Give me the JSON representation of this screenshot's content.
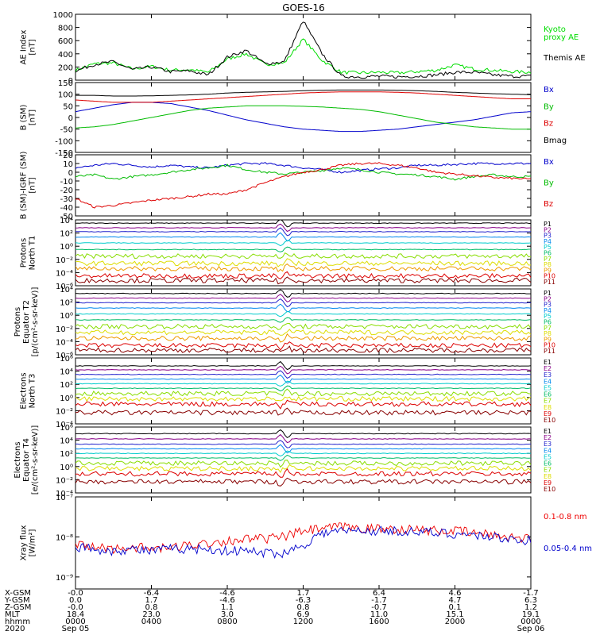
{
  "title": "GOES-16",
  "panels": [
    {
      "id": "ae",
      "ylabel": [
        "AE Index",
        "[nT]"
      ],
      "ticks": [
        "1000",
        "800",
        "600",
        "400",
        "200",
        "0"
      ],
      "tick_values": [
        1000,
        800,
        600,
        400,
        200,
        0
      ],
      "ylim": [
        0,
        1000
      ],
      "log": false,
      "legend": [
        {
          "text": "Kyoto",
          "color": "#00dd00"
        },
        {
          "text": "proxy AE",
          "color": "#00dd00"
        },
        {
          "text": "Themis AE",
          "color": "#000000"
        }
      ]
    },
    {
      "id": "bsm",
      "ylabel": [
        "B (SM)",
        "[nT]"
      ],
      "ticks": [
        "150",
        "100",
        "50",
        "0",
        "-50",
        "-100",
        "-150"
      ],
      "tick_values": [
        150,
        100,
        50,
        0,
        -50,
        -100,
        -150
      ],
      "ylim": [
        -150,
        150
      ],
      "log": false,
      "legend": [
        {
          "text": "Bx",
          "color": "#0000cc"
        },
        {
          "text": "By",
          "color": "#00bb00"
        },
        {
          "text": "Bz",
          "color": "#dd0000"
        },
        {
          "text": "Bmag",
          "color": "#000000"
        }
      ]
    },
    {
      "id": "bigrf",
      "ylabel": [
        "B (SM)-IGRF (SM)",
        "[nT]"
      ],
      "ticks": [
        "20",
        "10",
        "0",
        "-10",
        "-20",
        "-30",
        "-40",
        "-50"
      ],
      "tick_values": [
        20,
        10,
        0,
        -10,
        -20,
        -30,
        -40,
        -50
      ],
      "ylim": [
        -50,
        20
      ],
      "log": false,
      "legend": [
        {
          "text": "Bx",
          "color": "#0000cc"
        },
        {
          "text": "By",
          "color": "#00bb00"
        },
        {
          "text": "Bz",
          "color": "#dd0000"
        }
      ]
    },
    {
      "id": "pt1",
      "ylabel": [
        "Protons",
        "North T1"
      ],
      "ticks": [
        "10⁴",
        "10²",
        "10⁰",
        "10⁻²",
        "10⁻⁴",
        "10⁻⁶"
      ],
      "tick_values": [
        4,
        2,
        0,
        -2,
        -4,
        -6
      ],
      "ylim": [
        -6,
        4
      ],
      "log": true,
      "legend": [
        {
          "text": "P1",
          "color": "#000000"
        },
        {
          "text": "P2",
          "color": "#880088"
        },
        {
          "text": "P3",
          "color": "#2222cc"
        },
        {
          "text": "P4",
          "color": "#0088ee"
        },
        {
          "text": "P5",
          "color": "#00cccc"
        },
        {
          "text": "P6",
          "color": "#00bb66"
        },
        {
          "text": "P7",
          "color": "#88dd00"
        },
        {
          "text": "P8",
          "color": "#dddd00"
        },
        {
          "text": "P9",
          "color": "#ee9900"
        },
        {
          "text": "P10",
          "color": "#dd0000"
        },
        {
          "text": "P11",
          "color": "#880000"
        }
      ]
    },
    {
      "id": "pt2",
      "ylabel": [
        "Protons",
        "Equator T2",
        "[p/(cm²-s-sr-keV)]"
      ],
      "ticks": [
        "10⁴",
        "10²",
        "10⁰",
        "10⁻²",
        "10⁻⁴",
        "10⁻⁶"
      ],
      "tick_values": [
        4,
        2,
        0,
        -2,
        -4,
        -6
      ],
      "ylim": [
        -6,
        4
      ],
      "log": true,
      "legend": [
        {
          "text": "P1",
          "color": "#000000"
        },
        {
          "text": "P2",
          "color": "#880088"
        },
        {
          "text": "P3",
          "color": "#2222cc"
        },
        {
          "text": "P4",
          "color": "#0088ee"
        },
        {
          "text": "P5",
          "color": "#00cccc"
        },
        {
          "text": "P6",
          "color": "#00bb66"
        },
        {
          "text": "P7",
          "color": "#88dd00"
        },
        {
          "text": "P8",
          "color": "#dddd00"
        },
        {
          "text": "P9",
          "color": "#ee9900"
        },
        {
          "text": "P10",
          "color": "#dd0000"
        },
        {
          "text": "P11",
          "color": "#880000"
        }
      ]
    },
    {
      "id": "et3",
      "ylabel": [
        "Electrons",
        "North T3"
      ],
      "ticks": [
        "10⁶",
        "10⁴",
        "10²",
        "10⁰",
        "10⁻²",
        "10⁻⁴"
      ],
      "tick_values": [
        6,
        4,
        2,
        0,
        -2,
        -4
      ],
      "ylim": [
        -4,
        6
      ],
      "log": true,
      "legend": [
        {
          "text": "E1",
          "color": "#000000"
        },
        {
          "text": "E2",
          "color": "#880088"
        },
        {
          "text": "E3",
          "color": "#2222cc"
        },
        {
          "text": "E4",
          "color": "#0088ee"
        },
        {
          "text": "E5",
          "color": "#00cccc"
        },
        {
          "text": "E6",
          "color": "#00bb66"
        },
        {
          "text": "E7",
          "color": "#88dd00"
        },
        {
          "text": "E8",
          "color": "#dddd00"
        },
        {
          "text": "E9",
          "color": "#dd0000"
        },
        {
          "text": "E10",
          "color": "#880000"
        }
      ]
    },
    {
      "id": "et4",
      "ylabel": [
        "Electrons",
        "Equator T4",
        "[e/(cm²-s-sr-keV)]"
      ],
      "ticks": [
        "10⁶",
        "10⁴",
        "10²",
        "10⁰",
        "10⁻²",
        "10⁻⁴"
      ],
      "tick_values": [
        6,
        4,
        2,
        0,
        -2,
        -4
      ],
      "ylim": [
        -4,
        6
      ],
      "log": true,
      "legend": [
        {
          "text": "E1",
          "color": "#000000"
        },
        {
          "text": "E2",
          "color": "#880088"
        },
        {
          "text": "E3",
          "color": "#2222cc"
        },
        {
          "text": "E4",
          "color": "#0088ee"
        },
        {
          "text": "E5",
          "color": "#00cccc"
        },
        {
          "text": "E6",
          "color": "#00bb66"
        },
        {
          "text": "E7",
          "color": "#88dd00"
        },
        {
          "text": "E8",
          "color": "#dddd00"
        },
        {
          "text": "E9",
          "color": "#dd0000"
        },
        {
          "text": "E10",
          "color": "#880000"
        }
      ]
    },
    {
      "id": "xray",
      "ylabel": [
        "Xray flux",
        "[W/m²]"
      ],
      "ticks": [
        "10⁻⁷",
        "10⁻⁸",
        "10⁻⁹"
      ],
      "tick_values": [
        -7,
        -8,
        -9
      ],
      "ylim": [
        -9.3,
        -7
      ],
      "log": true,
      "legend": [
        {
          "text": "0.1-0.8 nm",
          "color": "#ee0000"
        },
        {
          "text": "0.05-0.4 nm",
          "color": "#0000cc"
        }
      ]
    }
  ],
  "footer": {
    "row_labels": [
      "X-GSM",
      "Y-GSM",
      "Z-GSM",
      "MLT",
      "hhmm",
      "2020"
    ],
    "columns": [
      {
        "values": [
          "-0.0",
          "0.0",
          "-0.0",
          "18.4",
          "0000",
          "Sep 05"
        ]
      },
      {
        "values": [
          "-6.4",
          "1.7",
          "0.8",
          "23.0",
          "0400",
          ""
        ]
      },
      {
        "values": [
          "-4.6",
          "-4.6",
          "1.1",
          "3.0",
          "0800",
          ""
        ]
      },
      {
        "values": [
          "1.7",
          "-6.3",
          "0.8",
          "6.9",
          "1200",
          ""
        ]
      },
      {
        "values": [
          "6.4",
          "-1.7",
          "-0.7",
          "11.0",
          "1600",
          ""
        ]
      },
      {
        "values": [
          "4.6",
          "4.7",
          "0.1",
          "15.1",
          "2000",
          ""
        ]
      },
      {
        "values": [
          "-1.7",
          "6.3",
          "1.2",
          "19.1",
          "0000",
          "Sep 06"
        ]
      }
    ]
  },
  "chart_data": {
    "type": "line",
    "title": "GOES-16",
    "x_hours": [
      0,
      1,
      2,
      3,
      4,
      5,
      6,
      7,
      8,
      9,
      10,
      11,
      12,
      13,
      14,
      15,
      16,
      17,
      18,
      19,
      20,
      21,
      22,
      23,
      24
    ],
    "x_ticks": [
      "0000",
      "0400",
      "0800",
      "1200",
      "1600",
      "2000",
      "0000"
    ],
    "panels": [
      {
        "id": "ae",
        "series": [
          {
            "name": "Kyoto proxy AE",
            "values": [
              150,
              250,
              260,
              170,
              210,
              150,
              160,
              120,
              320,
              400,
              240,
              260,
              620,
              300,
              120,
              110,
              120,
              110,
              130,
              150,
              230,
              170,
              150,
              130,
              120
            ]
          },
          {
            "name": "Themis AE",
            "values": [
              140,
              240,
              280,
              160,
              200,
              130,
              140,
              80,
              350,
              450,
              250,
              280,
              900,
              400,
              60,
              50,
              60,
              50,
              60,
              80,
              120,
              120,
              80,
              60,
              60
            ]
          }
        ]
      },
      {
        "id": "bsm",
        "series": [
          {
            "name": "Bx",
            "values": [
              25,
              40,
              55,
              65,
              65,
              60,
              45,
              30,
              10,
              -10,
              -25,
              -40,
              -50,
              -55,
              -60,
              -60,
              -55,
              -50,
              -40,
              -30,
              -20,
              -10,
              5,
              20,
              25
            ]
          },
          {
            "name": "By",
            "values": [
              -45,
              -40,
              -30,
              -15,
              0,
              15,
              30,
              40,
              45,
              50,
              50,
              50,
              48,
              45,
              40,
              35,
              25,
              10,
              -5,
              -20,
              -30,
              -40,
              -45,
              -50,
              -50
            ]
          },
          {
            "name": "Bz",
            "values": [
              75,
              70,
              65,
              65,
              65,
              70,
              75,
              80,
              85,
              90,
              95,
              100,
              105,
              108,
              110,
              110,
              110,
              108,
              105,
              100,
              95,
              90,
              85,
              80,
              80
            ]
          },
          {
            "name": "Bmag",
            "values": [
              95,
              95,
              92,
              92,
              93,
              95,
              97,
              100,
              105,
              108,
              110,
              112,
              115,
              117,
              118,
              118,
              118,
              117,
              115,
              112,
              108,
              105,
              102,
              100,
              98
            ]
          }
        ]
      },
      {
        "id": "bigrf",
        "series": [
          {
            "name": "Bx",
            "values": [
              5,
              8,
              10,
              8,
              6,
              8,
              6,
              5,
              8,
              10,
              10,
              8,
              5,
              3,
              0,
              2,
              4,
              5,
              8,
              8,
              9,
              10,
              10,
              10,
              10
            ]
          },
          {
            "name": "By",
            "values": [
              -5,
              -3,
              -8,
              -5,
              -3,
              0,
              3,
              5,
              8,
              3,
              0,
              -2,
              0,
              2,
              5,
              3,
              0,
              -2,
              -3,
              -5,
              -8,
              -5,
              -3,
              -5,
              -5
            ]
          },
          {
            "name": "Bz",
            "values": [
              -30,
              -40,
              -38,
              -35,
              -32,
              -30,
              -28,
              -25,
              -25,
              -20,
              -12,
              -5,
              0,
              3,
              8,
              10,
              10,
              8,
              5,
              0,
              -2,
              -4,
              -6,
              -7,
              -8
            ]
          }
        ]
      },
      {
        "id": "pt1",
        "series_levels": [
          3.5,
          2.8,
          2.2,
          1.4,
          0.5,
          -0.5,
          -1.5,
          -2.6,
          -3.4,
          -4.5,
          -5.2
        ]
      },
      {
        "id": "pt2",
        "series_levels": [
          3.3,
          2.6,
          1.9,
          1.1,
          0.2,
          -0.7,
          -1.7,
          -2.6,
          -3.5,
          -4.6,
          -5.3
        ]
      },
      {
        "id": "et3",
        "series_levels": [
          4.8,
          4.2,
          3.5,
          2.8,
          2.1,
          1.4,
          0.6,
          -0.2,
          -1.0,
          -2.3
        ]
      },
      {
        "id": "et4",
        "series_levels": [
          5.0,
          4.2,
          3.4,
          2.7,
          2.0,
          1.3,
          0.5,
          -0.3,
          -1.1,
          -2.3
        ]
      },
      {
        "id": "xray",
        "series": [
          {
            "name": "0.1-0.8 nm",
            "values": [
              -8.2,
              -8.25,
              -8.3,
              -8.25,
              -8.3,
              -8.28,
              -8.2,
              -8.15,
              -8.1,
              -8.05,
              -8.05,
              -8.0,
              -7.85,
              -7.8,
              -7.75,
              -7.78,
              -7.8,
              -7.8,
              -7.82,
              -7.85,
              -7.85,
              -7.9,
              -7.95,
              -8.0,
              -8.05
            ]
          },
          {
            "name": "0.05-0.4 nm",
            "values": [
              -8.25,
              -8.3,
              -8.35,
              -8.3,
              -8.35,
              -8.3,
              -8.3,
              -8.3,
              -8.35,
              -8.35,
              -8.4,
              -8.4,
              -8.2,
              -7.9,
              -7.85,
              -7.85,
              -7.85,
              -7.85,
              -7.88,
              -7.9,
              -7.92,
              -7.95,
              -8.0,
              -8.05,
              -8.1
            ]
          }
        ]
      }
    ]
  }
}
